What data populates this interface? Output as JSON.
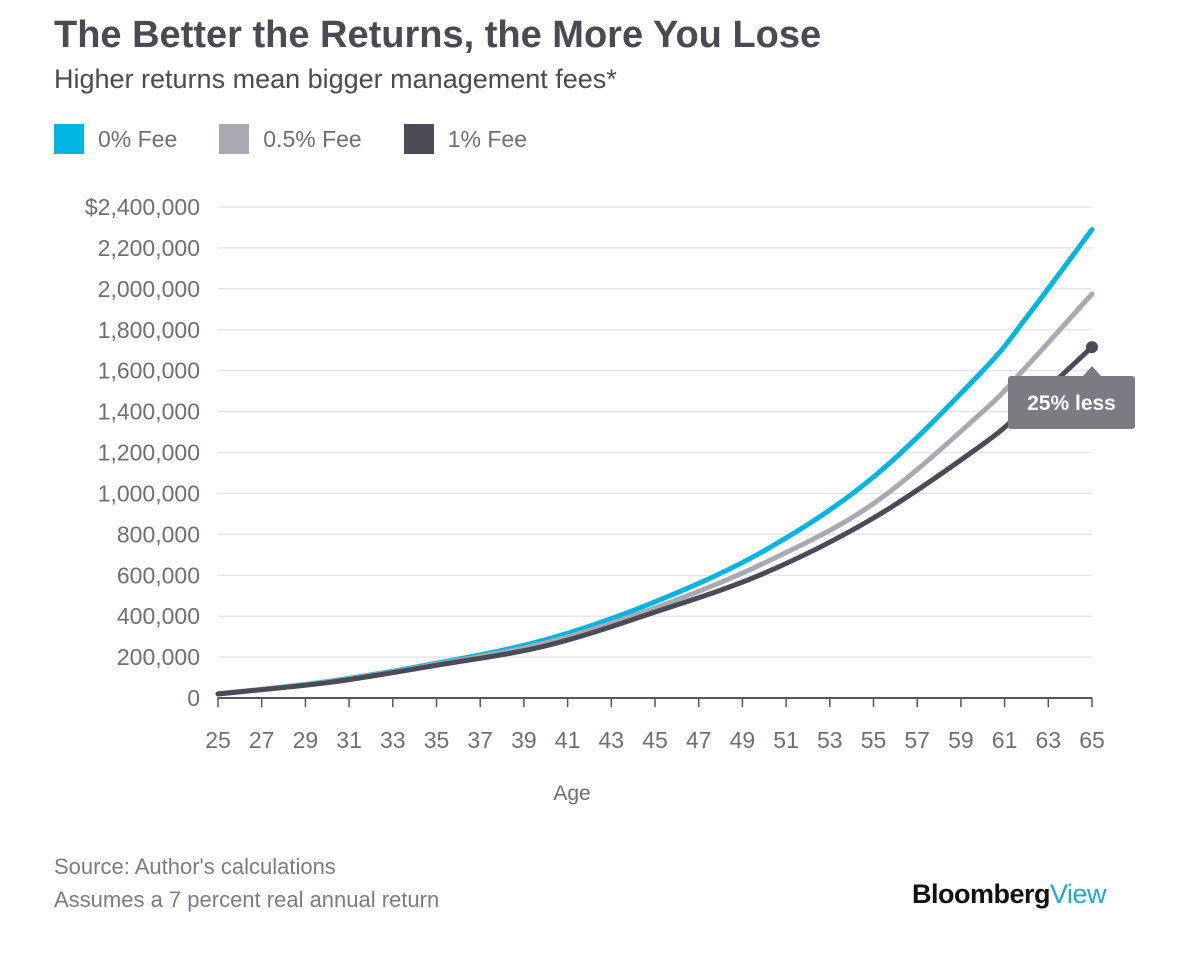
{
  "header": {
    "title": "The Better the Returns, the More You Lose",
    "subtitle": "Higher returns mean bigger management fees*"
  },
  "legend": [
    {
      "label": "0% Fee",
      "color": "#00b5e2"
    },
    {
      "label": "0.5% Fee",
      "color": "#a9a9b2"
    },
    {
      "label": "1% Fee",
      "color": "#4b4b57"
    }
  ],
  "annotation": {
    "text": "25% less",
    "color": "#7b7b84"
  },
  "footer": {
    "source": "Source: Author's calculations",
    "note": "Assumes a 7 percent real annual return",
    "brand_main": "Bloomberg",
    "brand_accent": "View"
  },
  "chart_data": {
    "type": "line",
    "title": "The Better the Returns, the More You Lose",
    "subtitle": "Higher returns mean bigger management fees*",
    "xlabel": "Age",
    "ylabel": "",
    "xlim": [
      25,
      65
    ],
    "ylim": [
      0,
      2400000
    ],
    "x_ticks": [
      25,
      27,
      29,
      31,
      33,
      35,
      37,
      39,
      41,
      43,
      45,
      47,
      49,
      51,
      53,
      55,
      57,
      59,
      61,
      63,
      65
    ],
    "y_ticks": [
      0,
      200000,
      400000,
      600000,
      800000,
      1000000,
      1200000,
      1400000,
      1600000,
      1800000,
      2000000,
      2200000,
      2400000
    ],
    "y_tick_labels": [
      "0",
      "200,000",
      "400,000",
      "600,000",
      "800,000",
      "1,000,000",
      "1,200,000",
      "1,400,000",
      "1,600,000",
      "1,800,000",
      "2,000,000",
      "2,200,000",
      "$2,400,000"
    ],
    "grid": true,
    "legend_position": "top-left",
    "x": [
      25,
      30,
      35,
      40,
      45,
      50,
      55,
      60,
      62,
      65
    ],
    "series": [
      {
        "name": "0% Fee",
        "color": "#00b5e2",
        "values": [
          20000,
          80000,
          170000,
          285000,
          470000,
          720000,
          1080000,
          1600000,
          1860000,
          2290000
        ]
      },
      {
        "name": "0.5% Fee",
        "color": "#a9a9b2",
        "values": [
          20000,
          78000,
          165000,
          270000,
          440000,
          660000,
          950000,
          1400000,
          1620000,
          1975000
        ]
      },
      {
        "name": "1% Fee",
        "color": "#4b4b57",
        "values": [
          20000,
          75000,
          160000,
          255000,
          420000,
          610000,
          880000,
          1240000,
          1420000,
          1715000
        ]
      }
    ]
  }
}
